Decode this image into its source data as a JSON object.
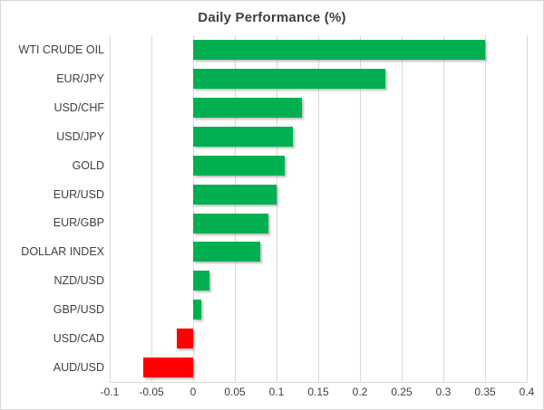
{
  "chart_data": {
    "type": "bar",
    "orientation": "horizontal",
    "title": "Daily Performance (%)",
    "categories": [
      "WTI CRUDE OIL",
      "EUR/JPY",
      "USD/CHF",
      "USD/JPY",
      "GOLD",
      "EUR/USD",
      "EUR/GBP",
      "DOLLAR INDEX",
      "NZD/USD",
      "GBP/USD",
      "USD/CAD",
      "AUD/USD"
    ],
    "values": [
      0.35,
      0.23,
      0.13,
      0.12,
      0.11,
      0.1,
      0.09,
      0.08,
      0.02,
      0.01,
      -0.02,
      -0.06
    ],
    "xlim": [
      -0.1,
      0.4
    ],
    "x_ticks": [
      -0.1,
      -0.05,
      0,
      0.05,
      0.1,
      0.15,
      0.2,
      0.25,
      0.3,
      0.35,
      0.4
    ],
    "x_tick_labels": [
      "-0.1",
      "-0.05",
      "0",
      "0.05",
      "0.1",
      "0.15",
      "0.2",
      "0.25",
      "0.3",
      "0.35",
      "0.4"
    ],
    "grid": true,
    "legend": false,
    "colors": {
      "positive": "#00B050",
      "negative": "#FF0000",
      "gridline": "#D9D9D9",
      "text": "#404040",
      "title_text": "#3F3F3F",
      "background": "#FFFFFF"
    }
  }
}
